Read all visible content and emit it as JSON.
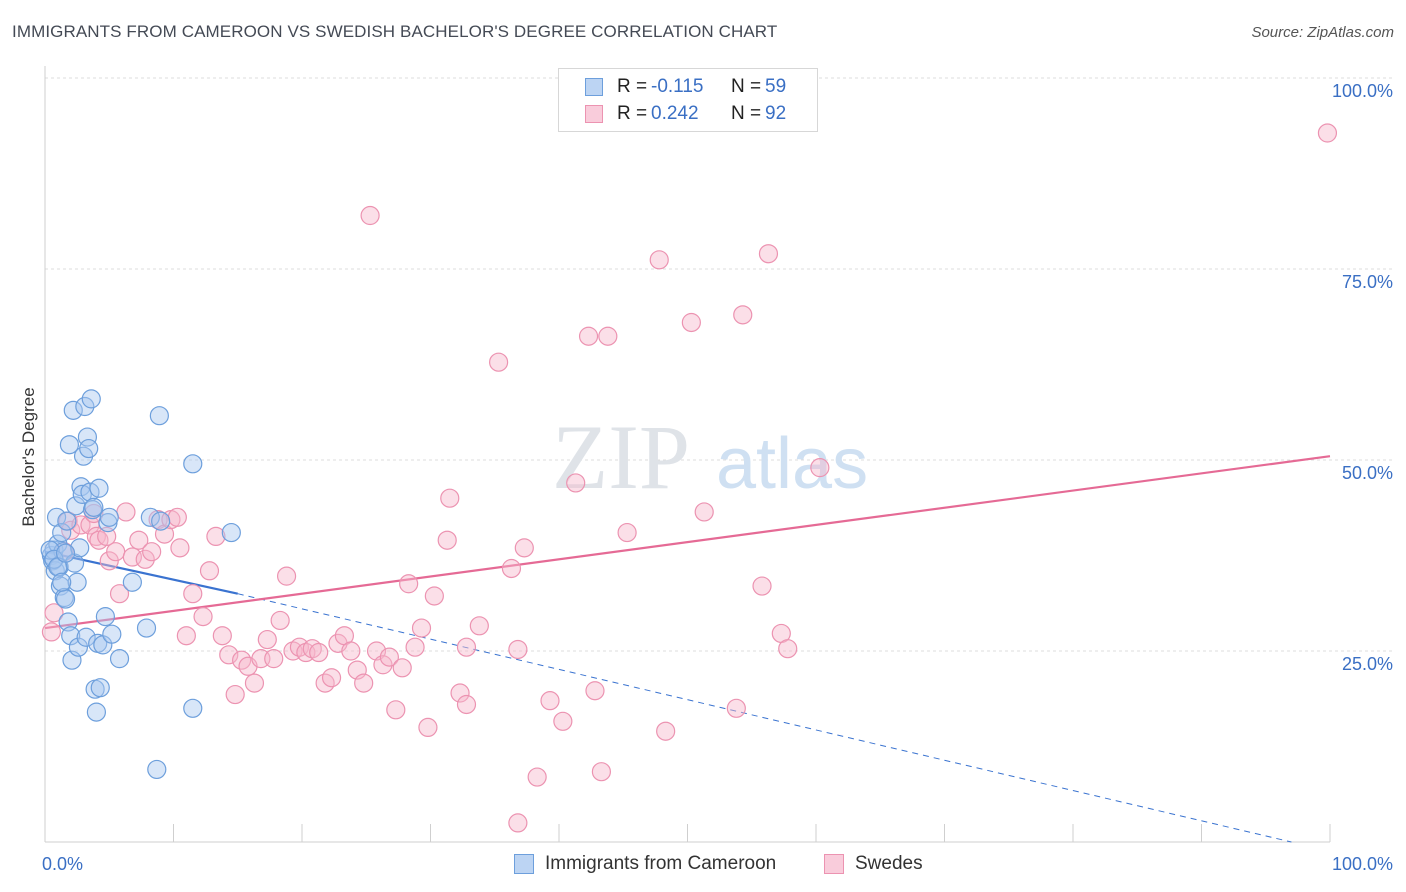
{
  "header": {
    "title": "IMMIGRANTS FROM CAMEROON VS SWEDISH BACHELOR'S DEGREE CORRELATION CHART",
    "source": "Source: ZipAtlas.com"
  },
  "legend": {
    "rows": [
      {
        "r_label": "R =",
        "r_value": "-0.115",
        "n_label": "N =",
        "n_value": "59"
      },
      {
        "r_label": "R =",
        "r_value": "0.242",
        "n_label": "N =",
        "n_value": "92"
      }
    ]
  },
  "watermark": {
    "zip": "ZIP",
    "atlas": "atlas"
  },
  "colors": {
    "blue_fill": "#a9c8ef",
    "blue_stroke": "#6d9fdc",
    "blue_line": "#3a73d0",
    "pink_fill": "#f6b8cb",
    "pink_stroke": "#ec93b1",
    "pink_line": "#e56a95",
    "axis_text": "#3a6fc4",
    "grid": "#dcdcdc"
  },
  "chart_data": {
    "type": "scatter",
    "title": "IMMIGRANTS FROM CAMEROON VS SWEDISH BACHELOR'S DEGREE CORRELATION CHART",
    "xlabel": "",
    "ylabel": "Bachelor's Degree",
    "xlim": [
      0,
      100
    ],
    "ylim": [
      0,
      100
    ],
    "x_tick_labels": [
      "0.0%",
      "100.0%"
    ],
    "y_tick_labels": [
      "25.0%",
      "50.0%",
      "75.0%",
      "100.0%"
    ],
    "y_ticks": [
      25,
      50,
      75,
      100
    ],
    "grid": true,
    "legend_position": "top-center",
    "series": [
      {
        "name": "Immigrants from Cameroon",
        "color": "#6d9fdc",
        "points": [
          [
            0.5,
            37.5
          ],
          [
            0.6,
            36.8
          ],
          [
            0.7,
            38.2
          ],
          [
            0.8,
            35.5
          ],
          [
            0.9,
            42.5
          ],
          [
            1.0,
            39.0
          ],
          [
            1.1,
            36.0
          ],
          [
            1.2,
            33.5
          ],
          [
            1.3,
            40.5
          ],
          [
            1.4,
            38.0
          ],
          [
            1.5,
            32.0
          ],
          [
            1.6,
            31.8
          ],
          [
            1.7,
            42.0
          ],
          [
            1.8,
            28.8
          ],
          [
            1.9,
            52.0
          ],
          [
            2.0,
            27.0
          ],
          [
            2.1,
            23.8
          ],
          [
            2.2,
            56.5
          ],
          [
            2.3,
            36.5
          ],
          [
            2.4,
            44.0
          ],
          [
            2.5,
            34.0
          ],
          [
            2.6,
            25.5
          ],
          [
            2.7,
            38.5
          ],
          [
            2.8,
            46.5
          ],
          [
            2.9,
            45.5
          ],
          [
            3.0,
            50.5
          ],
          [
            3.1,
            57.0
          ],
          [
            3.2,
            26.8
          ],
          [
            3.3,
            53.0
          ],
          [
            3.4,
            51.5
          ],
          [
            3.5,
            45.8
          ],
          [
            3.6,
            58.0
          ],
          [
            3.7,
            43.5
          ],
          [
            3.8,
            43.8
          ],
          [
            3.9,
            20.0
          ],
          [
            4.0,
            17.0
          ],
          [
            4.1,
            26.0
          ],
          [
            4.2,
            46.3
          ],
          [
            4.3,
            20.2
          ],
          [
            4.5,
            25.8
          ],
          [
            4.7,
            29.5
          ],
          [
            4.9,
            41.8
          ],
          [
            5.0,
            42.5
          ],
          [
            5.2,
            27.2
          ],
          [
            5.8,
            24.0
          ],
          [
            6.8,
            34.0
          ],
          [
            7.9,
            28.0
          ],
          [
            8.2,
            42.5
          ],
          [
            8.7,
            9.5
          ],
          [
            8.9,
            55.8
          ],
          [
            9.0,
            42.0
          ],
          [
            11.5,
            49.5
          ],
          [
            11.5,
            17.5
          ],
          [
            14.5,
            40.5
          ],
          [
            0.4,
            38.2
          ],
          [
            0.7,
            37.0
          ],
          [
            1.0,
            36.0
          ],
          [
            1.3,
            34.0
          ],
          [
            1.6,
            37.8
          ]
        ]
      },
      {
        "name": "Swedes",
        "color": "#ec93b1",
        "points": [
          [
            0.5,
            27.5
          ],
          [
            0.7,
            30.0
          ],
          [
            1.5,
            38.0
          ],
          [
            1.8,
            42.0
          ],
          [
            2.0,
            40.8
          ],
          [
            2.8,
            41.5
          ],
          [
            3.5,
            41.5
          ],
          [
            3.8,
            43.0
          ],
          [
            4.0,
            40.0
          ],
          [
            4.2,
            39.5
          ],
          [
            4.8,
            40.0
          ],
          [
            5.0,
            36.8
          ],
          [
            5.5,
            38.0
          ],
          [
            5.8,
            32.5
          ],
          [
            6.3,
            43.2
          ],
          [
            6.8,
            37.3
          ],
          [
            7.3,
            39.5
          ],
          [
            7.8,
            37.0
          ],
          [
            8.3,
            38.0
          ],
          [
            8.8,
            42.2
          ],
          [
            9.3,
            40.3
          ],
          [
            9.8,
            42.2
          ],
          [
            10.3,
            42.5
          ],
          [
            10.5,
            38.5
          ],
          [
            11.0,
            27.0
          ],
          [
            11.5,
            32.5
          ],
          [
            12.3,
            29.5
          ],
          [
            12.8,
            35.5
          ],
          [
            13.3,
            40.0
          ],
          [
            13.8,
            27.0
          ],
          [
            14.3,
            24.5
          ],
          [
            14.8,
            19.3
          ],
          [
            15.3,
            23.8
          ],
          [
            15.8,
            23.0
          ],
          [
            16.3,
            20.8
          ],
          [
            16.8,
            24.0
          ],
          [
            17.3,
            26.5
          ],
          [
            17.8,
            24.0
          ],
          [
            18.3,
            29.0
          ],
          [
            18.8,
            34.8
          ],
          [
            19.3,
            25.0
          ],
          [
            19.8,
            25.5
          ],
          [
            20.3,
            24.8
          ],
          [
            20.8,
            25.3
          ],
          [
            21.3,
            24.8
          ],
          [
            21.8,
            20.8
          ],
          [
            22.3,
            21.5
          ],
          [
            22.8,
            26.0
          ],
          [
            23.3,
            27.0
          ],
          [
            23.8,
            25.0
          ],
          [
            24.3,
            22.5
          ],
          [
            24.8,
            20.8
          ],
          [
            25.3,
            82.0
          ],
          [
            25.8,
            25.0
          ],
          [
            26.3,
            23.2
          ],
          [
            26.8,
            24.2
          ],
          [
            27.3,
            17.3
          ],
          [
            27.8,
            22.8
          ],
          [
            28.3,
            33.8
          ],
          [
            28.8,
            25.5
          ],
          [
            29.3,
            28.0
          ],
          [
            29.8,
            15.0
          ],
          [
            30.3,
            32.2
          ],
          [
            31.3,
            39.5
          ],
          [
            31.5,
            45.0
          ],
          [
            32.3,
            19.5
          ],
          [
            32.8,
            25.5
          ],
          [
            32.8,
            18.0
          ],
          [
            33.8,
            28.3
          ],
          [
            35.3,
            62.8
          ],
          [
            36.3,
            35.8
          ],
          [
            36.8,
            25.2
          ],
          [
            36.8,
            2.5
          ],
          [
            37.3,
            38.5
          ],
          [
            38.3,
            8.5
          ],
          [
            39.3,
            18.5
          ],
          [
            40.3,
            15.8
          ],
          [
            41.3,
            47.0
          ],
          [
            42.3,
            66.2
          ],
          [
            42.8,
            19.8
          ],
          [
            43.3,
            9.2
          ],
          [
            43.8,
            66.2
          ],
          [
            45.3,
            40.5
          ],
          [
            47.8,
            76.2
          ],
          [
            48.3,
            14.5
          ],
          [
            50.3,
            68.0
          ],
          [
            51.3,
            43.2
          ],
          [
            53.8,
            17.5
          ],
          [
            54.3,
            69.0
          ],
          [
            55.8,
            33.5
          ],
          [
            57.3,
            27.3
          ],
          [
            57.8,
            25.3
          ]
        ],
        "extra_points": [
          [
            56.3,
            77.0
          ],
          [
            60.3,
            49.0
          ],
          [
            99.8,
            92.8
          ]
        ]
      }
    ],
    "trend_lines": [
      {
        "series": "Immigrants from Cameroon",
        "solid": [
          [
            0,
            38.0
          ],
          [
            15,
            32.5
          ]
        ],
        "dashed": [
          [
            15,
            32.5
          ],
          [
            97,
            0
          ]
        ]
      },
      {
        "series": "Swedes",
        "solid": [
          [
            0,
            28.0
          ],
          [
            100,
            50.5
          ]
        ]
      }
    ]
  },
  "bottom_legend": [
    {
      "label": "Immigrants from Cameroon"
    },
    {
      "label": "Swedes"
    }
  ]
}
